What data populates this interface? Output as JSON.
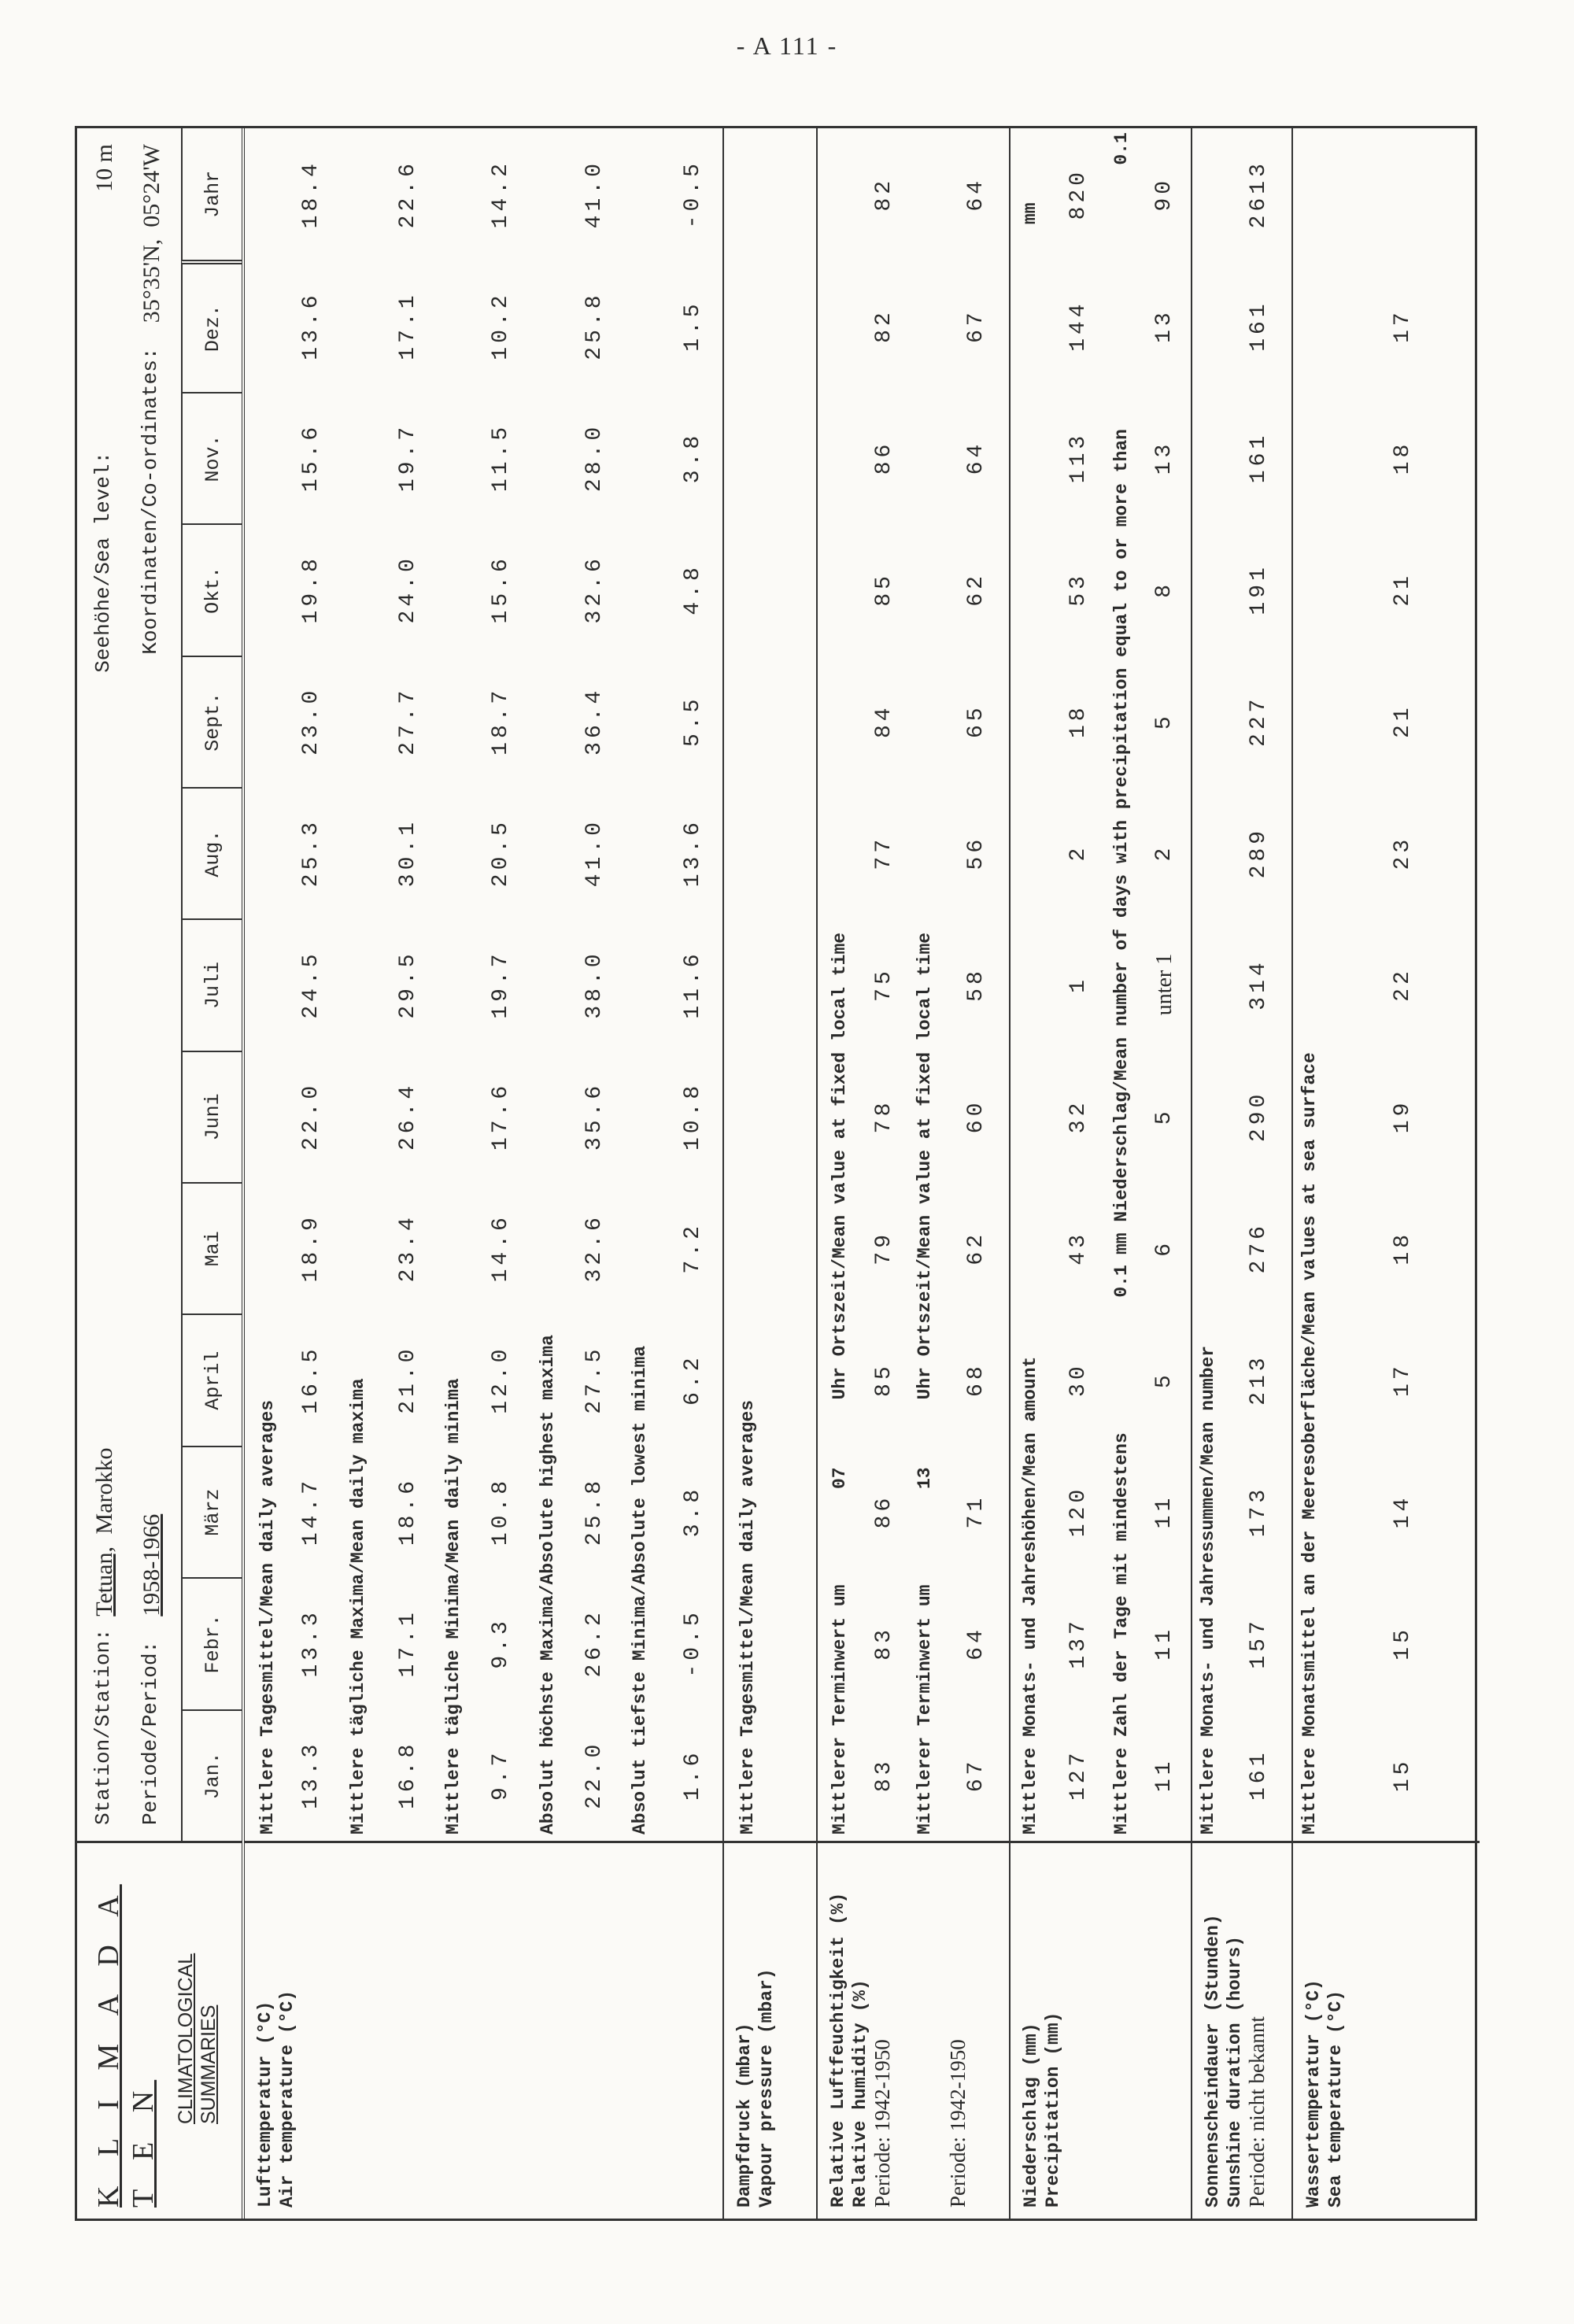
{
  "page_number": "- A 111 -",
  "header": {
    "title": "K L I M A D A T E N",
    "subtitle": "CLIMATOLOGICAL SUMMARIES",
    "station_label": "Station/Station:",
    "station": "Tetuan,",
    "country": "Marokko",
    "period_label": "Periode/Period:",
    "period": "1958-1966",
    "sea_level_label": "Seehöhe/Sea level:",
    "sea_level": "10 m",
    "coords_label": "Koordinaten/Co-ordinates:",
    "coords": "35°35'N,  05°24'W",
    "months": [
      "Jan.",
      "Febr.",
      "März",
      "April",
      "Mai",
      "Juni",
      "Juli",
      "Aug.",
      "Sept.",
      "Okt.",
      "Nov.",
      "Dez.",
      "Jahr"
    ]
  },
  "sections": [
    {
      "id": "air-temperature",
      "labels": [
        "Lufttemperatur  (°C)",
        "Air temperature (°C)"
      ],
      "rows": [
        {
          "type": "caption",
          "parts": [
            {
              "text": "Mittlere Tagesmittel/Mean daily averages",
              "col": 0
            }
          ]
        },
        {
          "type": "values",
          "values": [
            "13.3",
            "13.3",
            "14.7",
            "16.5",
            "18.9",
            "22.0",
            "24.5",
            "25.3",
            "23.0",
            "19.8",
            "15.6",
            "13.6",
            "18.4"
          ]
        },
        {
          "type": "caption",
          "parts": [
            {
              "text": "Mittlere tägliche Maxima/Mean daily maxima",
              "col": 0
            }
          ]
        },
        {
          "type": "values",
          "values": [
            "16.8",
            "17.1",
            "18.6",
            "21.0",
            "23.4",
            "26.4",
            "29.5",
            "30.1",
            "27.7",
            "24.0",
            "19.7",
            "17.1",
            "22.6"
          ]
        },
        {
          "type": "caption",
          "parts": [
            {
              "text": "Mittlere tägliche Minima/Mean daily minima",
              "col": 0
            }
          ]
        },
        {
          "type": "values",
          "values": [
            "9.7",
            "9.3",
            "10.8",
            "12.0",
            "14.6",
            "17.6",
            "19.7",
            "20.5",
            "18.7",
            "15.6",
            "11.5",
            "10.2",
            "14.2"
          ]
        },
        {
          "type": "caption",
          "parts": [
            {
              "text": "Absolut höchste Maxima/Absolute highest maxima",
              "col": 0
            }
          ]
        },
        {
          "type": "values",
          "values": [
            "22.0",
            "26.2",
            "25.8",
            "27.5",
            "32.6",
            "35.6",
            "38.0",
            "41.0",
            "36.4",
            "32.6",
            "28.0",
            "25.8",
            "41.0"
          ]
        },
        {
          "type": "caption",
          "parts": [
            {
              "text": "Absolut tiefste Minima/Absolute lowest minima",
              "col": 0
            }
          ]
        },
        {
          "type": "values",
          "values": [
            "1.6",
            "-0.5",
            "3.8",
            "6.2",
            "7.2",
            "10.8",
            "11.6",
            "13.6",
            "5.5",
            "4.8",
            "3.8",
            "1.5",
            "-0.5"
          ]
        }
      ]
    },
    {
      "id": "vapour-pressure",
      "labels": [
        "Dampfdruck (mbar)",
        "Vapour pressure (mbar)"
      ],
      "rows": [
        {
          "type": "caption",
          "parts": [
            {
              "text": "Mittlere Tagesmittel/Mean daily averages",
              "col": 0
            }
          ]
        },
        {
          "type": "values",
          "values": []
        }
      ]
    },
    {
      "id": "relative-humidity",
      "labels": [
        "Relative Luftfeuchtigkeit (%)",
        "Relative humidity (%)"
      ],
      "plain_labels": [
        "Periode: 1942-1950"
      ],
      "extra_label": "Periode: 1942-1950",
      "rows": [
        {
          "type": "caption",
          "parts": [
            {
              "text": "Mittlerer Terminwert um",
              "col": 0
            },
            {
              "text": "07",
              "col": 2
            },
            {
              "text": "Uhr Ortszeit/Mean value at fixed local time",
              "col": 3
            }
          ]
        },
        {
          "type": "values",
          "values": [
            "83",
            "83",
            "86",
            "85",
            "79",
            "78",
            "75",
            "77",
            "84",
            "85",
            "86",
            "82",
            "82"
          ]
        },
        {
          "type": "caption",
          "parts": [
            {
              "text": "Mittlerer Terminwert um",
              "col": 0
            },
            {
              "text": "13",
              "col": 2
            },
            {
              "text": "Uhr Ortszeit/Mean value at fixed local time",
              "col": 3
            }
          ]
        },
        {
          "type": "values",
          "values": [
            "67",
            "64",
            "71",
            "68",
            "62",
            "60",
            "58",
            "56",
            "65",
            "62",
            "64",
            "67",
            "64"
          ]
        }
      ]
    },
    {
      "id": "precipitation",
      "labels": [
        "Niederschlag  (mm)",
        "Precipitation (mm)"
      ],
      "rows": [
        {
          "type": "caption",
          "parts": [
            {
              "text": "Mittlere Monats- und Jahreshöhen/Mean amount",
              "col": 0
            },
            {
              "text": "mm",
              "col": 12
            }
          ]
        },
        {
          "type": "values",
          "values": [
            "127",
            "137",
            "120",
            "30",
            "43",
            "32",
            "1",
            "2",
            "18",
            "53",
            "113",
            "144",
            "820"
          ]
        },
        {
          "type": "caption",
          "parts": [
            {
              "text": "Mittlere Zahl der Tage mit mindestens",
              "col": 0
            },
            {
              "text": "0.1",
              "col": 4
            },
            {
              "text": "mm Niederschlag/Mean number of days with precipitation equal to or more than",
              "col": 5
            },
            {
              "text": "0.1",
              "col": 12
            }
          ]
        },
        {
          "type": "values",
          "values": [
            "11",
            "11",
            "11",
            "5",
            "6",
            "5",
            "unter 1",
            "2",
            "5",
            "8",
            "13",
            "13",
            "90"
          ]
        }
      ]
    },
    {
      "id": "sunshine-duration",
      "labels": [
        "Sonnenscheindauer (Stunden)",
        "Sunshine duration (hours)"
      ],
      "plain_labels": [
        "Periode: nicht bekannt"
      ],
      "rows": [
        {
          "type": "caption",
          "parts": [
            {
              "text": "Mittlere Monats- und Jahressummen/Mean number",
              "col": 0
            }
          ]
        },
        {
          "type": "values",
          "values": [
            "161",
            "157",
            "173",
            "213",
            "276",
            "290",
            "314",
            "289",
            "227",
            "191",
            "161",
            "161",
            "2613"
          ]
        }
      ]
    },
    {
      "id": "sea-temperature",
      "labels": [
        "Wassertemperatur (°C)",
        "Sea temperature  (°C)"
      ],
      "rows": [
        {
          "type": "caption",
          "parts": [
            {
              "text": "Mittlere Monatsmittel an der Meeresoberfläche/Mean values at sea surface",
              "col": 0
            }
          ]
        },
        {
          "type": "values",
          "values": [
            "15",
            "15",
            "14",
            "17",
            "18",
            "19",
            "22",
            "23",
            "21",
            "21",
            "18",
            "17",
            ""
          ]
        }
      ]
    }
  ]
}
